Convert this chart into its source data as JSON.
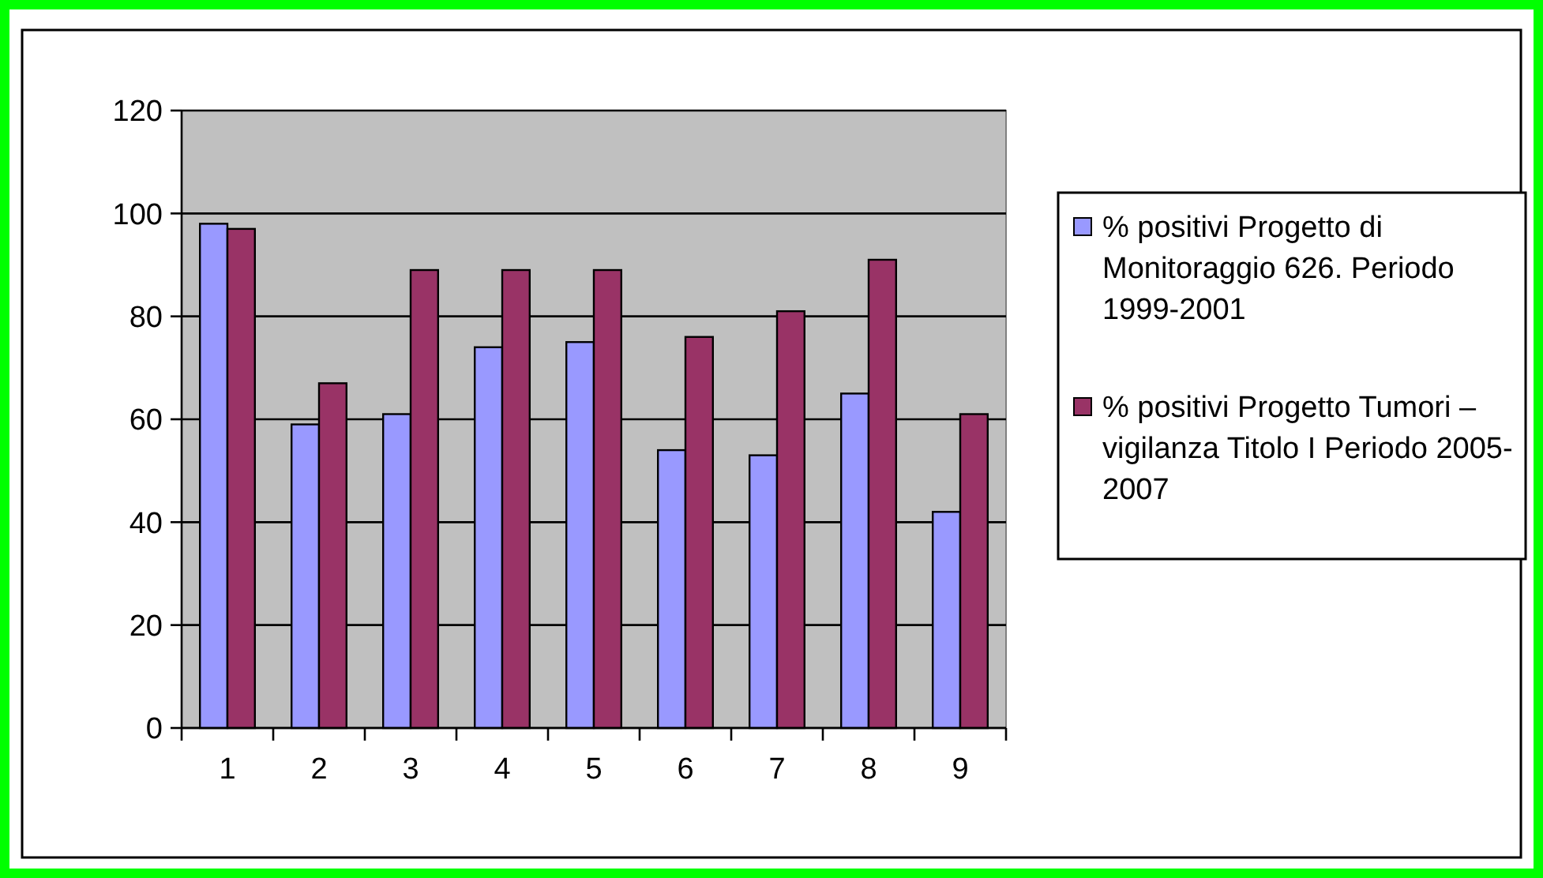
{
  "chart_data": {
    "type": "bar",
    "categories": [
      "1",
      "2",
      "3",
      "4",
      "5",
      "6",
      "7",
      "8",
      "9"
    ],
    "series": [
      {
        "name": "% positivi Progetto di Monitoraggio 626. Periodo 1999-2001",
        "color": "#9999ff",
        "values": [
          98,
          59,
          61,
          74,
          75,
          54,
          53,
          65,
          42
        ]
      },
      {
        "name": "% positivi Progetto Tumori  – vigilanza Titolo I Periodo 2005-2007",
        "color": "#993366",
        "values": [
          97,
          67,
          89,
          89,
          89,
          76,
          81,
          91,
          61
        ]
      }
    ],
    "ylim": [
      0,
      120
    ],
    "yticks": [
      0,
      20,
      40,
      60,
      80,
      100,
      120
    ],
    "grid": "y",
    "legend": "right"
  }
}
